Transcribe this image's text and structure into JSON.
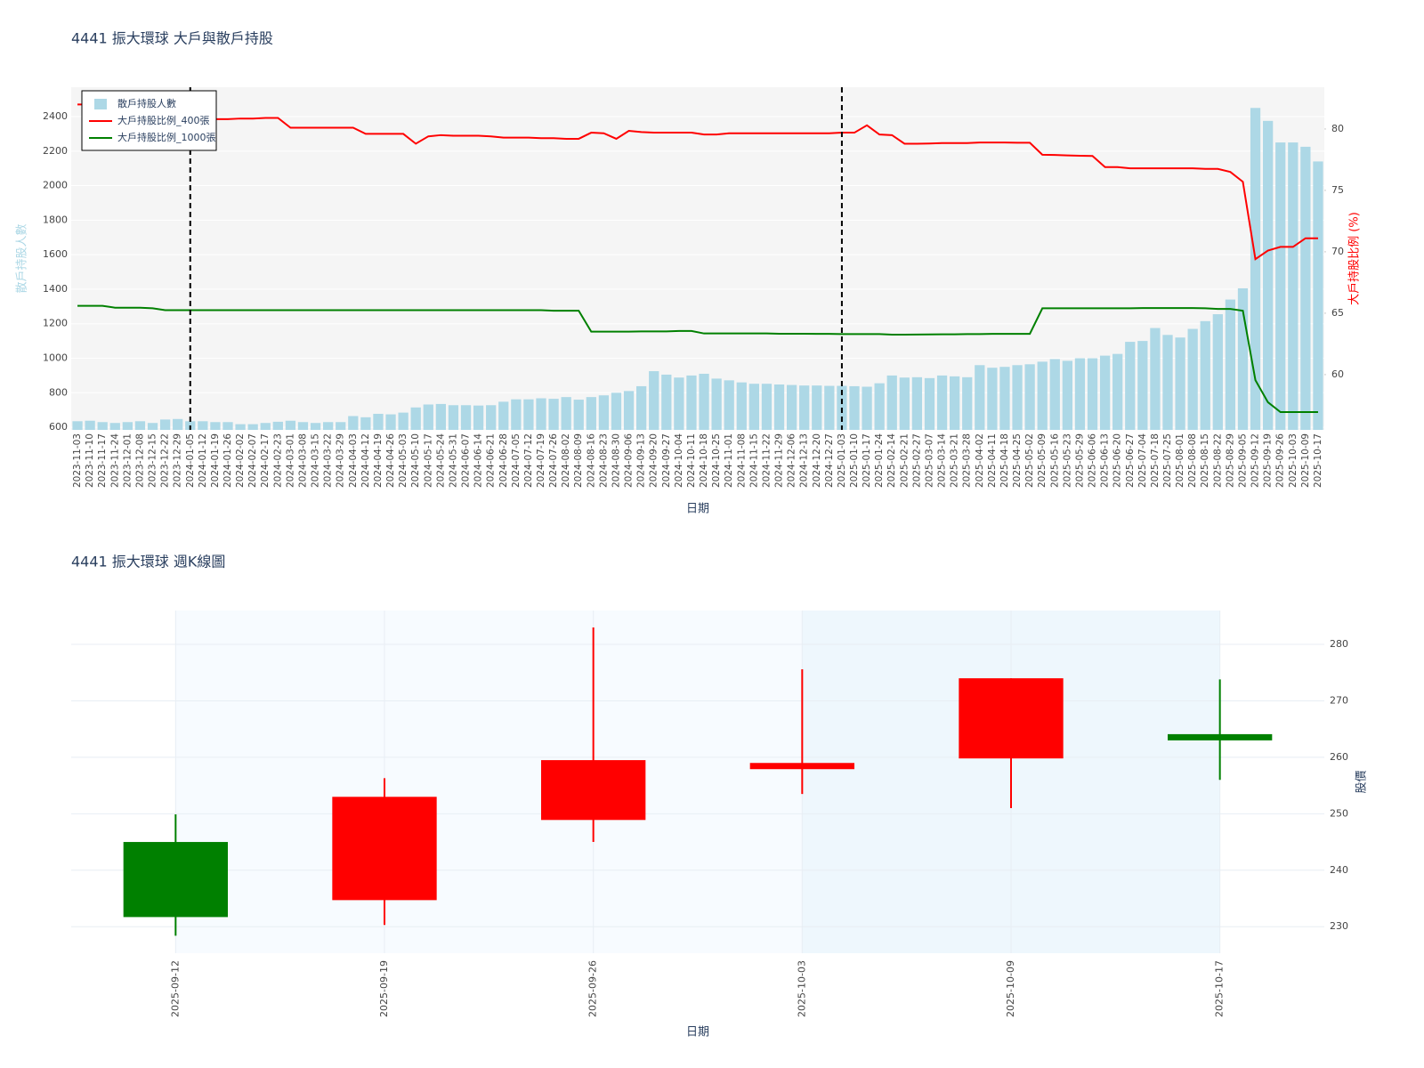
{
  "chart_data": [
    {
      "type": "bar",
      "title": "4441 振大環球 大戶與散戶持股",
      "x_label": "日期",
      "y_label": "散戶持股人數",
      "y2_label": "大戶持股比例 (%)",
      "y_label_color": "#add8e6",
      "y2_label_color": "#ff0000",
      "background": "#f5f5f5",
      "grid": true,
      "legend": "upper left",
      "categories": [
        "2023-11-03",
        "2023-11-10",
        "2023-11-17",
        "2023-11-24",
        "2023-12-01",
        "2023-12-08",
        "2023-12-15",
        "2023-12-22",
        "2023-12-29",
        "2024-01-05",
        "2024-01-12",
        "2024-01-19",
        "2024-01-26",
        "2024-02-02",
        "2024-02-07",
        "2024-02-17",
        "2024-02-23",
        "2024-03-01",
        "2024-03-08",
        "2024-03-15",
        "2024-03-22",
        "2024-03-29",
        "2024-04-03",
        "2024-04-12",
        "2024-04-19",
        "2024-04-26",
        "2024-05-03",
        "2024-05-10",
        "2024-05-17",
        "2024-05-24",
        "2024-05-31",
        "2024-06-07",
        "2024-06-14",
        "2024-06-21",
        "2024-06-28",
        "2024-07-05",
        "2024-07-12",
        "2024-07-19",
        "2024-07-26",
        "2024-08-02",
        "2024-08-09",
        "2024-08-16",
        "2024-08-23",
        "2024-08-30",
        "2024-09-06",
        "2024-09-13",
        "2024-09-20",
        "2024-09-27",
        "2024-10-04",
        "2024-10-11",
        "2024-10-18",
        "2024-10-25",
        "2024-11-01",
        "2024-11-08",
        "2024-11-15",
        "2024-11-22",
        "2024-11-29",
        "2024-12-06",
        "2024-12-13",
        "2024-12-20",
        "2024-12-27",
        "2025-01-03",
        "2025-01-10",
        "2025-01-17",
        "2025-01-24",
        "2025-02-14",
        "2025-02-21",
        "2025-02-27",
        "2025-03-07",
        "2025-03-14",
        "2025-03-21",
        "2025-03-28",
        "2025-04-02",
        "2025-04-11",
        "2025-04-18",
        "2025-04-25",
        "2025-05-02",
        "2025-05-09",
        "2025-05-16",
        "2025-05-23",
        "2025-05-29",
        "2025-06-06",
        "2025-06-13",
        "2025-06-20",
        "2025-06-27",
        "2025-07-04",
        "2025-07-18",
        "2025-07-25",
        "2025-08-01",
        "2025-08-08",
        "2025-08-15",
        "2025-08-22",
        "2025-08-29",
        "2025-09-05",
        "2025-09-12",
        "2025-09-19",
        "2025-09-26",
        "2025-10-03",
        "2025-10-09",
        "2025-10-17"
      ],
      "vlines": [
        "2024-01-05",
        "2025-01-03"
      ],
      "series": [
        {
          "name": "散戶持股人數",
          "type": "bar",
          "color": "#add8e6",
          "values": [
            635,
            638,
            630,
            625,
            630,
            635,
            625,
            645,
            648,
            635,
            635,
            630,
            630,
            618,
            618,
            625,
            632,
            638,
            630,
            625,
            630,
            630,
            665,
            658,
            678,
            675,
            685,
            715,
            732,
            735,
            728,
            728,
            726,
            728,
            748,
            762,
            762,
            768,
            765,
            775,
            760,
            775,
            785,
            800,
            810,
            838,
            925,
            905,
            888,
            900,
            910,
            882,
            872,
            860,
            852,
            852,
            848,
            845,
            842,
            842,
            840,
            840,
            838,
            835,
            855,
            900,
            888,
            890,
            885,
            900,
            895,
            890,
            960,
            945,
            950,
            960,
            965,
            980,
            995,
            985,
            1000,
            1000,
            1015,
            1025,
            1095,
            1100,
            1175,
            1135,
            1120,
            1170,
            1215,
            1255,
            1340,
            1405,
            2450,
            2375,
            2250,
            2250,
            2225,
            2140
          ]
        },
        {
          "name": "大戶持股比例_400張",
          "type": "line",
          "axis": "y2",
          "color": "#ff0000",
          "values": [
            82.0,
            82.0,
            82.0,
            82.0,
            82.0,
            82.0,
            82.0,
            82.0,
            80.8,
            80.8,
            80.8,
            80.8,
            80.8,
            80.85,
            80.85,
            80.9,
            80.9,
            80.1,
            80.1,
            80.1,
            80.1,
            80.1,
            80.1,
            79.6,
            79.6,
            79.6,
            79.6,
            78.8,
            79.4,
            79.5,
            79.45,
            79.45,
            79.45,
            79.4,
            79.3,
            79.3,
            79.3,
            79.25,
            79.25,
            79.2,
            79.2,
            79.7,
            79.65,
            79.2,
            79.85,
            79.75,
            79.7,
            79.7,
            79.7,
            79.7,
            79.55,
            79.55,
            79.65,
            79.65,
            79.65,
            79.65,
            79.65,
            79.65,
            79.65,
            79.65,
            79.65,
            79.7,
            79.7,
            80.3,
            79.55,
            79.5,
            78.8,
            78.8,
            78.82,
            78.85,
            78.85,
            78.85,
            78.9,
            78.9,
            78.9,
            78.88,
            78.88,
            77.9,
            77.88,
            77.85,
            77.82,
            77.8,
            76.9,
            76.9,
            76.8,
            76.8,
            76.8,
            76.8,
            76.8,
            76.8,
            76.75,
            76.75,
            76.5,
            75.7,
            69.4,
            70.1,
            70.4,
            70.4,
            71.1,
            71.1
          ]
        },
        {
          "name": "大戶持股比例_1000張",
          "type": "line",
          "axis": "y2",
          "color": "#008000",
          "values": [
            65.6,
            65.6,
            65.6,
            65.45,
            65.45,
            65.45,
            65.4,
            65.25,
            65.25,
            65.25,
            65.25,
            65.25,
            65.25,
            65.25,
            65.25,
            65.25,
            65.25,
            65.25,
            65.25,
            65.25,
            65.25,
            65.25,
            65.25,
            65.25,
            65.25,
            65.25,
            65.25,
            65.25,
            65.25,
            65.25,
            65.25,
            65.25,
            65.25,
            65.25,
            65.25,
            65.25,
            65.25,
            65.25,
            65.2,
            65.2,
            65.2,
            63.5,
            63.5,
            63.5,
            63.5,
            63.52,
            63.52,
            63.52,
            63.55,
            63.55,
            63.35,
            63.35,
            63.35,
            63.35,
            63.35,
            63.35,
            63.33,
            63.33,
            63.33,
            63.32,
            63.32,
            63.3,
            63.3,
            63.3,
            63.3,
            63.25,
            63.25,
            63.26,
            63.27,
            63.28,
            63.28,
            63.3,
            63.3,
            63.32,
            63.32,
            63.32,
            63.32,
            65.4,
            65.4,
            65.4,
            65.4,
            65.4,
            65.4,
            65.4,
            65.4,
            65.42,
            65.42,
            65.42,
            65.42,
            65.42,
            65.4,
            65.35,
            65.35,
            65.2,
            59.55,
            57.75,
            56.95,
            56.95,
            56.95,
            56.95
          ]
        }
      ],
      "ylim": [
        585,
        2570
      ],
      "yticks": [
        600,
        800,
        1000,
        1200,
        1400,
        1600,
        1800,
        2000,
        2200,
        2400
      ],
      "y2lim": [
        55.5,
        83.4
      ],
      "y2ticks": [
        60,
        65,
        70,
        75,
        80
      ]
    },
    {
      "type": "candlestick",
      "title": "4441 振大環球 週K線圖",
      "x_label": "日期",
      "y_label": "股價",
      "grid": true,
      "categories": [
        "2025-09-12",
        "2025-09-19",
        "2025-09-26",
        "2025-10-03",
        "2025-10-09",
        "2025-10-17"
      ],
      "open": [
        245.0,
        234.7,
        248.9,
        257.9,
        259.8,
        264.1
      ],
      "high": [
        249.9,
        256.3,
        283.0,
        275.6,
        274.0,
        273.8
      ],
      "low": [
        228.4,
        230.3,
        245.0,
        253.5,
        251.0,
        256.0
      ],
      "close": [
        231.7,
        253.0,
        259.5,
        259.0,
        274.0,
        263.0
      ],
      "increasing_color": "#ff0000",
      "decreasing_color": "#008000",
      "shaded_ranges": [
        {
          "x0": "2025-09-12",
          "x1": "2025-10-03",
          "color": "#f7fbff"
        },
        {
          "x0": "2025-10-03",
          "x1": "2025-10-17",
          "color": "#eef7fd"
        }
      ],
      "ylim": [
        225.3,
        286
      ],
      "yticks": [
        230,
        240,
        250,
        260,
        270,
        280
      ]
    }
  ]
}
